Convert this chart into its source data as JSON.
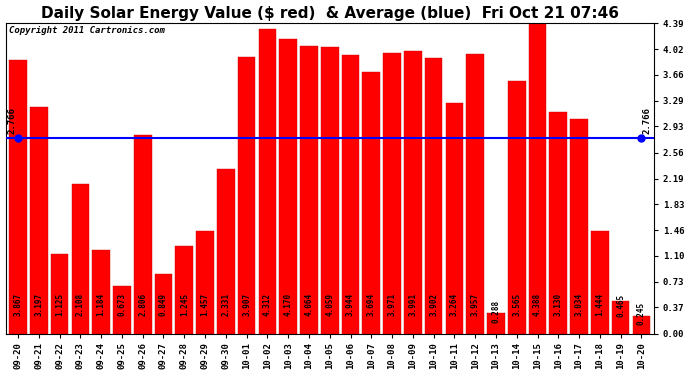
{
  "title": "Daily Solar Energy Value ($ red)  & Average (blue)  Fri Oct 21 07:46",
  "copyright": "Copyright 2011 Cartronics.com",
  "average": 2.766,
  "categories": [
    "09-20",
    "09-21",
    "09-22",
    "09-23",
    "09-24",
    "09-25",
    "09-26",
    "09-27",
    "09-28",
    "09-29",
    "09-30",
    "10-01",
    "10-02",
    "10-03",
    "10-04",
    "10-05",
    "10-06",
    "10-07",
    "10-08",
    "10-09",
    "10-10",
    "10-11",
    "10-12",
    "10-13",
    "10-14",
    "10-15",
    "10-16",
    "10-17",
    "10-18",
    "10-19",
    "10-20"
  ],
  "values": [
    3.867,
    3.197,
    1.125,
    2.108,
    1.184,
    0.673,
    2.806,
    0.849,
    1.245,
    1.457,
    2.331,
    3.907,
    4.312,
    4.17,
    4.064,
    4.059,
    3.944,
    3.694,
    3.971,
    3.991,
    3.902,
    3.264,
    3.957,
    0.288,
    3.565,
    4.388,
    3.13,
    3.034,
    1.444,
    0.465,
    0.245
  ],
  "bar_color": "#ff0000",
  "avg_line_color": "#0000ff",
  "bg_color": "#ffffff",
  "plot_bg_color": "#ffffff",
  "ylim": [
    0.0,
    4.39
  ],
  "yticks": [
    0.0,
    0.37,
    0.73,
    1.1,
    1.46,
    1.83,
    2.19,
    2.56,
    2.93,
    3.29,
    3.66,
    4.02,
    4.39
  ],
  "title_fontsize": 11,
  "copyright_fontsize": 6.5,
  "tick_fontsize": 6.5,
  "bar_label_fontsize": 5.5,
  "avg_label": "2.766",
  "avg_label_fontsize": 6.5
}
